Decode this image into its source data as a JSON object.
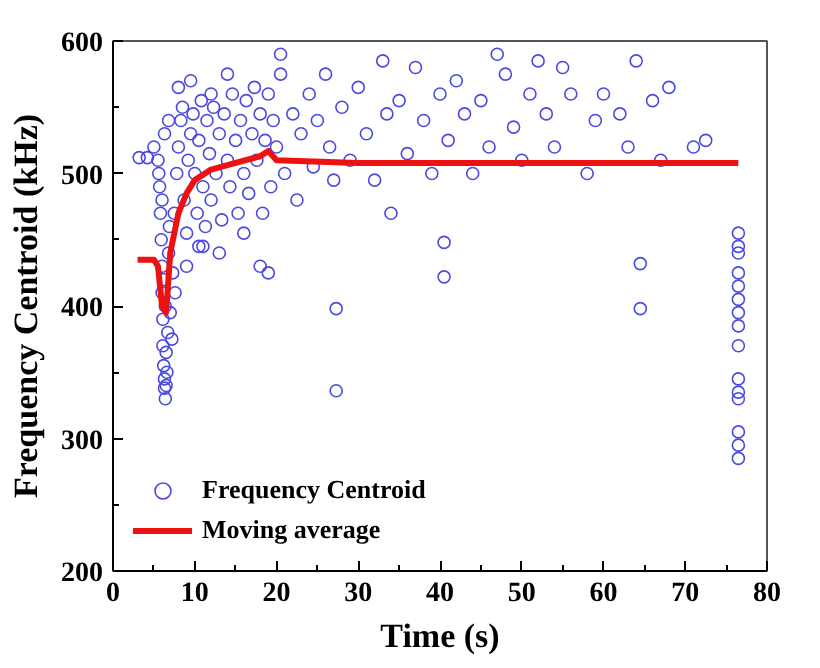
{
  "chart_data": {
    "type": "scatter",
    "xlabel": "Time (s)",
    "ylabel": "Frequency Centroid (kHz)",
    "xlim": [
      0,
      80
    ],
    "ylim": [
      200,
      600
    ],
    "xticks": [
      0,
      10,
      20,
      30,
      40,
      50,
      60,
      70,
      80
    ],
    "yticks": [
      200,
      300,
      400,
      500,
      600
    ],
    "grid": false,
    "legend": "bottom left",
    "series": [
      {
        "name": "Frequency Centroid",
        "marker": "circle",
        "color": "#4a4ae0",
        "x": [
          5.5,
          5.7,
          5.8,
          5.9,
          6.0,
          6.0,
          6.1,
          6.1,
          6.2,
          6.3,
          6.3,
          6.4,
          6.5,
          6.6,
          6.5,
          6.7,
          6.4,
          6.2,
          6.8,
          6.9,
          6.0,
          5.6,
          6.3,
          5.0,
          4.2,
          3.2,
          6.8,
          7.2,
          7.0,
          7.6,
          7.3,
          7.5,
          7.8,
          8,
          8.3,
          8.5,
          8.7,
          9,
          9.2,
          9.5,
          9.8,
          10,
          10.3,
          10.5,
          10.8,
          11,
          11.3,
          11.5,
          11.8,
          12,
          12.3,
          12.6,
          13,
          13.3,
          13.6,
          14,
          14.3,
          14.6,
          15,
          15.3,
          15.6,
          16,
          16.3,
          16.6,
          17,
          17.3,
          17.6,
          18,
          18.3,
          18.6,
          19,
          19.3,
          19.6,
          20,
          20.5,
          21,
          9,
          10.5,
          13,
          16,
          18,
          19,
          8,
          9.5,
          12,
          14,
          11,
          20.5,
          22,
          22.5,
          23,
          24,
          24.5,
          25,
          26,
          26.5,
          27,
          27.3,
          27.3,
          28,
          29,
          30,
          31,
          32,
          33,
          33.5,
          34,
          35,
          36,
          37,
          38,
          39,
          40,
          40.5,
          40.5,
          41,
          42,
          43,
          44,
          45,
          46,
          47,
          48,
          49,
          50,
          51,
          52,
          53,
          54,
          55,
          56,
          58,
          59,
          60,
          62,
          63,
          64,
          64.5,
          64.5,
          66,
          67,
          68,
          71,
          72.5,
          76.5,
          76.5,
          76.5,
          76.5,
          76.5,
          76.5,
          76.5,
          76.5,
          76.5,
          76.5,
          76.5,
          76.5,
          76.5,
          76.5,
          76.5
        ],
        "values": [
          510,
          490,
          470,
          450,
          430,
          410,
          390,
          370,
          355,
          345,
          338,
          330,
          340,
          350,
          365,
          380,
          400,
          420,
          440,
          460,
          480,
          500,
          530,
          520,
          512,
          512,
          540,
          375,
          395,
          410,
          425,
          470,
          500,
          520,
          540,
          550,
          480,
          455,
          510,
          530,
          545,
          500,
          470,
          525,
          555,
          490,
          460,
          540,
          515,
          480,
          550,
          500,
          530,
          465,
          545,
          510,
          490,
          560,
          525,
          470,
          540,
          500,
          555,
          485,
          530,
          565,
          510,
          545,
          470,
          525,
          560,
          490,
          540,
          520,
          575,
          500,
          430,
          445,
          440,
          455,
          430,
          425,
          565,
          570,
          560,
          575,
          445,
          590,
          545,
          480,
          530,
          560,
          505,
          540,
          575,
          520,
          495,
          398,
          336,
          550,
          510,
          565,
          530,
          495,
          585,
          545,
          470,
          555,
          515,
          580,
          540,
          500,
          560,
          422,
          448,
          525,
          570,
          545,
          500,
          555,
          520,
          590,
          575,
          535,
          510,
          560,
          585,
          545,
          520,
          580,
          560,
          500,
          540,
          560,
          545,
          520,
          585,
          432,
          398,
          555,
          510,
          565,
          520,
          525,
          285,
          295,
          305,
          330,
          335,
          345,
          370,
          385,
          395,
          405,
          415,
          425,
          440,
          445,
          455
        ]
      },
      {
        "name": "Moving average",
        "type": "line",
        "marker": "none",
        "color": "#ee1111",
        "x": [
          3,
          5,
          5.5,
          6,
          6.5,
          7,
          8,
          9,
          10,
          12,
          15,
          18,
          19,
          20,
          30,
          50,
          76.5
        ],
        "values": [
          435,
          435,
          430,
          400,
          395,
          440,
          470,
          485,
          495,
          503,
          508,
          513,
          517,
          510,
          508,
          508,
          508
        ]
      }
    ]
  }
}
